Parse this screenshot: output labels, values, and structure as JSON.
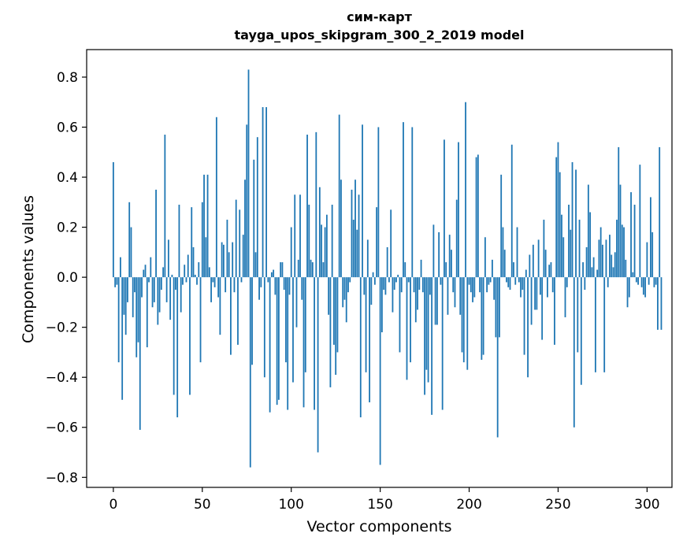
{
  "chart_data": {
    "type": "bar",
    "title": "сим-карт",
    "subtitle": "tayga_upos_skipgram_300_2_2019 model",
    "xlabel": "Vector components",
    "ylabel": "Components values",
    "xlim": [
      -15,
      314
    ],
    "ylim": [
      -0.84,
      0.91
    ],
    "xticks": [
      0,
      50,
      100,
      150,
      200,
      250,
      300
    ],
    "yticks": [
      -0.8,
      -0.6,
      -0.4,
      -0.2,
      0.0,
      0.2,
      0.4,
      0.6,
      0.8
    ],
    "xtick_labels": [
      "0",
      "50",
      "100",
      "150",
      "200",
      "250",
      "300"
    ],
    "ytick_labels": [
      "−0.8",
      "−0.6",
      "−0.4",
      "−0.2",
      "0.0",
      "0.2",
      "0.4",
      "0.6",
      "0.8"
    ],
    "grid": false,
    "color": "#1f77b4",
    "values": [
      0.46,
      -0.04,
      -0.03,
      -0.34,
      0.08,
      -0.49,
      -0.15,
      -0.23,
      -0.1,
      0.3,
      0.2,
      -0.16,
      -0.06,
      -0.32,
      -0.26,
      -0.61,
      -0.08,
      0.03,
      0.05,
      -0.28,
      -0.02,
      0.08,
      -0.12,
      -0.1,
      0.35,
      -0.19,
      -0.14,
      -0.05,
      0.04,
      0.57,
      -0.1,
      0.15,
      -0.17,
      0.01,
      -0.47,
      -0.05,
      -0.56,
      0.29,
      -0.14,
      -0.03,
      0.05,
      -0.02,
      0.09,
      -0.47,
      0.28,
      0.12,
      0.01,
      -0.03,
      0.06,
      -0.34,
      0.3,
      0.41,
      0.16,
      0.41,
      0.04,
      -0.1,
      -0.02,
      -0.04,
      0.64,
      -0.08,
      -0.23,
      0.14,
      0.13,
      -0.06,
      0.23,
      0.1,
      -0.31,
      0.14,
      -0.06,
      0.31,
      -0.27,
      0.27,
      -0.02,
      0.17,
      0.39,
      0.61,
      0.83,
      -0.76,
      -0.35,
      0.47,
      0.1,
      0.56,
      -0.09,
      -0.04,
      0.68,
      -0.4,
      0.68,
      -0.02,
      -0.54,
      0.02,
      0.03,
      -0.07,
      -0.51,
      -0.49,
      0.06,
      0.06,
      -0.05,
      -0.34,
      -0.53,
      -0.07,
      0.2,
      -0.42,
      0.33,
      -0.2,
      0.07,
      0.33,
      -0.09,
      -0.52,
      -0.38,
      0.57,
      0.29,
      0.07,
      0.06,
      -0.53,
      0.58,
      -0.7,
      0.36,
      0.21,
      0.06,
      0.2,
      0.25,
      -0.15,
      -0.44,
      0.29,
      -0.27,
      -0.39,
      -0.3,
      0.65,
      0.39,
      -0.12,
      -0.09,
      -0.18,
      -0.06,
      -0.02,
      0.35,
      0.23,
      0.39,
      0.19,
      0.33,
      -0.56,
      0.61,
      -0.07,
      -0.38,
      0.15,
      -0.5,
      -0.11,
      0.02,
      -0.03,
      0.28,
      0.6,
      -0.75,
      -0.22,
      -0.05,
      -0.07,
      0.12,
      -0.02,
      0.27,
      -0.14,
      -0.05,
      -0.02,
      0.01,
      -0.3,
      -0.06,
      0.62,
      0.06,
      -0.41,
      -0.02,
      -0.34,
      0.6,
      -0.06,
      -0.18,
      -0.13,
      -0.05,
      0.07,
      -0.06,
      -0.47,
      -0.37,
      -0.42,
      -0.07,
      -0.55,
      0.21,
      -0.19,
      -0.19,
      0.18,
      -0.03,
      -0.53,
      0.55,
      0.06,
      -0.15,
      0.17,
      0.11,
      -0.06,
      -0.12,
      0.31,
      0.54,
      -0.15,
      -0.3,
      -0.34,
      0.7,
      -0.37,
      -0.03,
      -0.06,
      -0.1,
      -0.08,
      0.48,
      0.49,
      -0.06,
      -0.33,
      -0.31,
      0.16,
      -0.06,
      -0.03,
      -0.02,
      0.07,
      -0.09,
      -0.24,
      -0.64,
      -0.24,
      0.41,
      0.2,
      0.11,
      -0.02,
      -0.04,
      -0.05,
      0.53,
      0.06,
      -0.03,
      0.2,
      -0.02,
      -0.08,
      -0.05,
      -0.31,
      0.03,
      -0.4,
      0.09,
      -0.19,
      0.13,
      -0.13,
      -0.13,
      0.15,
      -0.07,
      -0.25,
      0.23,
      0.11,
      -0.08,
      0.05,
      0.06,
      -0.06,
      -0.27,
      0.48,
      0.54,
      0.42,
      0.25,
      0.16,
      -0.16,
      -0.04,
      0.29,
      0.19,
      0.46,
      -0.6,
      0.43,
      -0.3,
      0.23,
      -0.43,
      0.06,
      -0.05,
      0.12,
      0.37,
      0.26,
      0.04,
      0.08,
      -0.38,
      0.03,
      0.15,
      0.2,
      0.13,
      -0.38,
      0.15,
      -0.04,
      0.17,
      0.09,
      0.04,
      0.1,
      0.23,
      0.52,
      0.37,
      0.21,
      0.2,
      0.07,
      -0.12,
      -0.08,
      0.34,
      0.02,
      0.29,
      -0.02,
      -0.03,
      0.45,
      -0.04,
      -0.07,
      -0.08,
      0.14,
      -0.03,
      0.32,
      0.18,
      -0.04,
      -0.03,
      -0.21,
      0.52,
      -0.21
    ]
  }
}
